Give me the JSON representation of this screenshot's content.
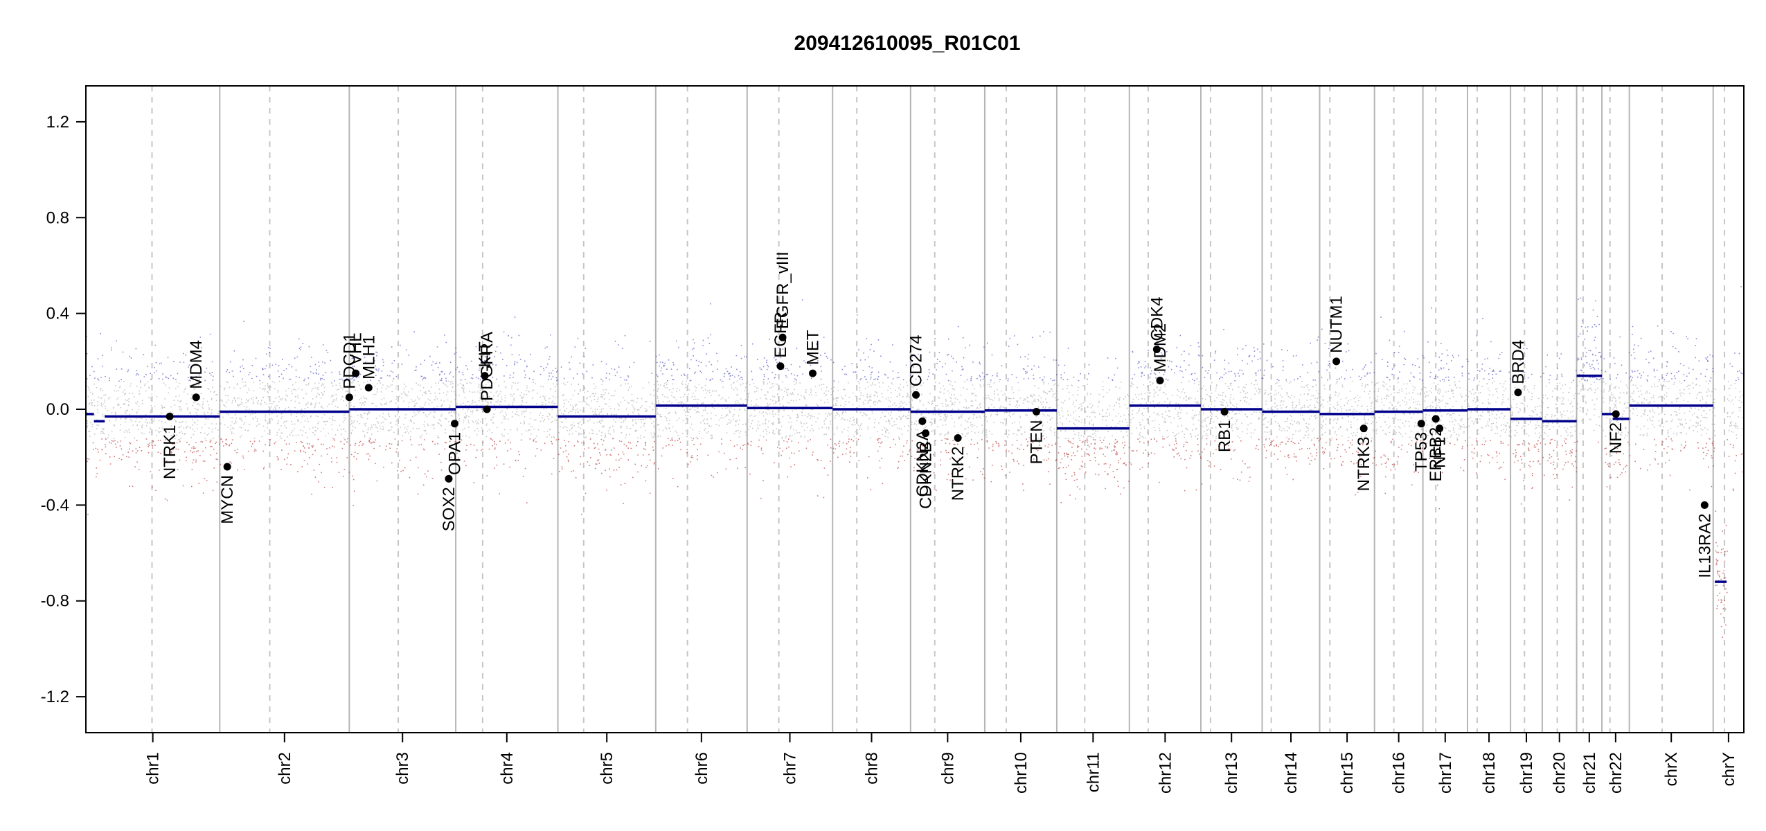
{
  "chart_data": {
    "type": "scatter",
    "title": "209412610095_R01C01",
    "xlabel": "",
    "ylabel": "",
    "ylim": [
      -1.35,
      1.35
    ],
    "yticks": [
      {
        "value": 1.2,
        "label": "1.2"
      },
      {
        "value": 0.8,
        "label": "0.8"
      },
      {
        "value": 0.4,
        "label": "0.4"
      },
      {
        "value": 0.0,
        "label": "0.0"
      },
      {
        "value": -0.4,
        "label": "-0.4"
      },
      {
        "value": -0.8,
        "label": "-0.8"
      },
      {
        "value": -1.2,
        "label": "-1.2"
      }
    ],
    "grid": false,
    "chromosomes": [
      {
        "name": "chr1",
        "start": 0,
        "end": 24.9,
        "centromere": 12.3,
        "segments": [
          {
            "from": 0,
            "to": 1.5,
            "value": -0.02
          },
          {
            "from": 1.5,
            "to": 3.5,
            "value": -0.05
          },
          {
            "from": 3.5,
            "to": 24.9,
            "value": -0.03
          }
        ]
      },
      {
        "name": "chr2",
        "start": 24.9,
        "end": 49.0,
        "centromere": 34.2,
        "segments": [
          {
            "from": 24.9,
            "to": 49.0,
            "value": -0.01
          }
        ]
      },
      {
        "name": "chr3",
        "start": 49.0,
        "end": 68.8,
        "centromere": 58.1,
        "segments": [
          {
            "from": 49.0,
            "to": 68.8,
            "value": 0.0
          }
        ]
      },
      {
        "name": "chr4",
        "start": 68.8,
        "end": 87.8,
        "centromere": 73.8,
        "segments": [
          {
            "from": 68.8,
            "to": 87.8,
            "value": 0.01
          }
        ]
      },
      {
        "name": "chr5",
        "start": 87.8,
        "end": 106.0,
        "centromere": 92.6,
        "segments": [
          {
            "from": 87.8,
            "to": 106.0,
            "value": -0.03
          }
        ]
      },
      {
        "name": "chr6",
        "start": 106.0,
        "end": 123.0,
        "centromere": 111.9,
        "segments": [
          {
            "from": 106.0,
            "to": 123.0,
            "value": 0.015
          }
        ]
      },
      {
        "name": "chr7",
        "start": 123.0,
        "end": 138.9,
        "centromere": 128.9,
        "segments": [
          {
            "from": 123.0,
            "to": 138.9,
            "value": 0.005
          }
        ]
      },
      {
        "name": "chr8",
        "start": 138.9,
        "end": 153.4,
        "centromere": 143.4,
        "segments": [
          {
            "from": 138.9,
            "to": 153.4,
            "value": 0.0
          }
        ]
      },
      {
        "name": "chr9",
        "start": 153.4,
        "end": 167.2,
        "centromere": 157.9,
        "segments": [
          {
            "from": 153.4,
            "to": 167.2,
            "value": -0.01
          }
        ]
      },
      {
        "name": "chr10",
        "start": 167.2,
        "end": 180.6,
        "centromere": 171.2,
        "segments": [
          {
            "from": 167.2,
            "to": 180.6,
            "value": -0.005
          }
        ]
      },
      {
        "name": "chr11",
        "start": 180.6,
        "end": 194.1,
        "centromere": 185.8,
        "segments": [
          {
            "from": 180.6,
            "to": 194.1,
            "value": -0.08
          }
        ]
      },
      {
        "name": "chr12",
        "start": 194.1,
        "end": 207.4,
        "centromere": 197.6,
        "segments": [
          {
            "from": 194.1,
            "to": 207.4,
            "value": 0.015
          }
        ]
      },
      {
        "name": "chr13",
        "start": 207.4,
        "end": 218.8,
        "centromere": 209.2,
        "segments": [
          {
            "from": 207.4,
            "to": 218.8,
            "value": 0.0
          }
        ]
      },
      {
        "name": "chr14",
        "start": 218.8,
        "end": 229.5,
        "centromere": 220.5,
        "segments": [
          {
            "from": 218.8,
            "to": 229.5,
            "value": -0.01
          }
        ]
      },
      {
        "name": "chr15",
        "start": 229.5,
        "end": 239.7,
        "centromere": 231.4,
        "segments": [
          {
            "from": 229.5,
            "to": 239.7,
            "value": -0.02
          }
        ]
      },
      {
        "name": "chr16",
        "start": 239.7,
        "end": 248.7,
        "centromere": 243.3,
        "segments": [
          {
            "from": 239.7,
            "to": 248.7,
            "value": -0.01
          }
        ]
      },
      {
        "name": "chr17",
        "start": 248.7,
        "end": 257.0,
        "centromere": 251.1,
        "segments": [
          {
            "from": 248.7,
            "to": 257.0,
            "value": -0.005
          }
        ]
      },
      {
        "name": "chr18",
        "start": 257.0,
        "end": 265.0,
        "centromere": 258.8,
        "segments": [
          {
            "from": 257.0,
            "to": 265.0,
            "value": 0.0
          }
        ]
      },
      {
        "name": "chr19",
        "start": 265.0,
        "end": 270.9,
        "centromere": 267.6,
        "segments": [
          {
            "from": 265.0,
            "to": 270.9,
            "value": -0.04
          }
        ]
      },
      {
        "name": "chr20",
        "start": 270.9,
        "end": 277.3,
        "centromere": 273.7,
        "segments": [
          {
            "from": 270.9,
            "to": 277.3,
            "value": -0.05
          }
        ]
      },
      {
        "name": "chr21",
        "start": 277.3,
        "end": 282.0,
        "centromere": 278.5,
        "segments": [
          {
            "from": 277.3,
            "to": 282.0,
            "value": 0.14
          }
        ]
      },
      {
        "name": "chr22",
        "start": 282.0,
        "end": 287.1,
        "centromere": 283.5,
        "segments": [
          {
            "from": 282.0,
            "to": 284.0,
            "value": -0.02
          },
          {
            "from": 284.0,
            "to": 287.1,
            "value": -0.04
          }
        ]
      },
      {
        "name": "chrX",
        "start": 287.1,
        "end": 302.7,
        "centromere": 293.2,
        "segments": [
          {
            "from": 287.1,
            "to": 302.7,
            "value": 0.015
          }
        ]
      },
      {
        "name": "chrY",
        "start": 302.7,
        "end": 308.4,
        "centromere": 304.8,
        "segments": [
          {
            "from": 303.0,
            "to": 305.2,
            "value": -0.72
          }
        ]
      }
    ],
    "genes": [
      {
        "name": "NTRK1",
        "x": 15.6,
        "y": -0.03,
        "label_side": "below"
      },
      {
        "name": "MDM4",
        "x": 20.5,
        "y": 0.05,
        "label_side": "above"
      },
      {
        "name": "MYCN",
        "x": 26.3,
        "y": -0.24,
        "label_side": "below"
      },
      {
        "name": "PDCD1",
        "x": 49.0,
        "y": 0.05,
        "label_side": "above"
      },
      {
        "name": "VHL",
        "x": 50.2,
        "y": 0.15,
        "label_side": "above"
      },
      {
        "name": "MLH1",
        "x": 52.6,
        "y": 0.09,
        "label_side": "above"
      },
      {
        "name": "SOX2",
        "x": 67.5,
        "y": -0.29,
        "label_side": "below"
      },
      {
        "name": "OPA1",
        "x": 68.6,
        "y": -0.06,
        "label_side": "below"
      },
      {
        "name": "KIT",
        "x": 74.2,
        "y": 0.14,
        "label_side": "above"
      },
      {
        "name": "PDGFRA",
        "x": 74.6,
        "y": 0.0,
        "label_side": "above"
      },
      {
        "name": "EGFR",
        "x": 129.2,
        "y": 0.18,
        "label_side": "above"
      },
      {
        "name": "EGFR_vIII",
        "x": 129.6,
        "y": 0.3,
        "label_side": "above"
      },
      {
        "name": "MET",
        "x": 135.2,
        "y": 0.15,
        "label_side": "above"
      },
      {
        "name": "CD274",
        "x": 154.4,
        "y": 0.06,
        "label_side": "above"
      },
      {
        "name": "CDKN2A",
        "x": 155.6,
        "y": -0.05,
        "label_side": "below"
      },
      {
        "name": "CDKN2B",
        "x": 156.2,
        "y": -0.1,
        "label_side": "below"
      },
      {
        "name": "NTRK2",
        "x": 162.2,
        "y": -0.12,
        "label_side": "below"
      },
      {
        "name": "PTEN",
        "x": 176.8,
        "y": -0.01,
        "label_side": "below"
      },
      {
        "name": "CDK4",
        "x": 199.2,
        "y": 0.25,
        "label_side": "above"
      },
      {
        "name": "MDM2",
        "x": 199.8,
        "y": 0.12,
        "label_side": "above"
      },
      {
        "name": "RB1",
        "x": 211.8,
        "y": -0.01,
        "label_side": "below"
      },
      {
        "name": "NUTM1",
        "x": 232.6,
        "y": 0.2,
        "label_side": "above"
      },
      {
        "name": "NTRK3",
        "x": 237.7,
        "y": -0.08,
        "label_side": "below"
      },
      {
        "name": "TP53",
        "x": 248.4,
        "y": -0.06,
        "label_side": "below"
      },
      {
        "name": "ERBB2",
        "x": 251.1,
        "y": -0.04,
        "label_side": "below"
      },
      {
        "name": "NF1",
        "x": 251.8,
        "y": -0.08,
        "label_side": "below"
      },
      {
        "name": "BRD4",
        "x": 266.4,
        "y": 0.07,
        "label_side": "above"
      },
      {
        "name": "NF2",
        "x": 284.6,
        "y": -0.02,
        "label_side": "below"
      },
      {
        "name": "IL13RA2",
        "x": 301.1,
        "y": -0.4,
        "label_side": "below"
      }
    ]
  },
  "colors": {
    "segment": "#00008b",
    "gene_dot": "#000000",
    "gain_point": "#2a2ab4",
    "loss_point": "#b42020",
    "neutral_point": "#9a9a9a",
    "chr_boundary": "#b5b5b5",
    "centromere": "#c6c6c6",
    "axis": "#000000"
  }
}
